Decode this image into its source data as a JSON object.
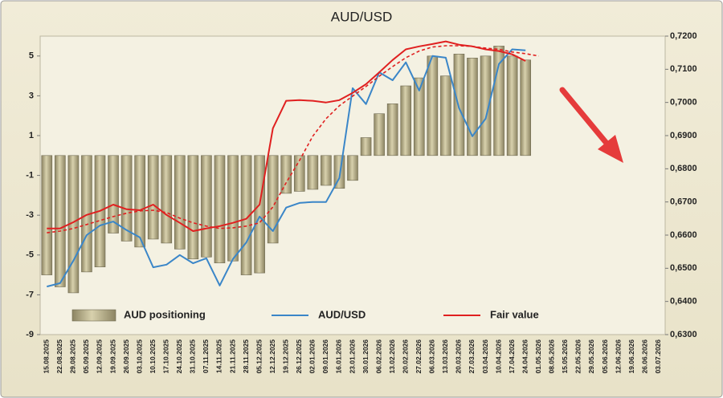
{
  "chart_data": {
    "type": "combo",
    "title": "AUD/USD",
    "categories": [
      "15.08.2025",
      "22.08.2025",
      "29.08.2025",
      "05.09.2025",
      "12.09.2025",
      "19.09.2025",
      "26.09.2025",
      "03.10.2025",
      "10.10.2025",
      "17.10.2025",
      "24.10.2025",
      "31.10.2025",
      "07.11.2025",
      "14.11.2025",
      "21.11.2025",
      "28.11.2025",
      "05.12.2025",
      "12.12.2025",
      "19.12.2025",
      "26.12.2025",
      "02.01.2026",
      "09.01.2026",
      "16.01.2026",
      "23.01.2026",
      "30.01.2026",
      "06.02.2026",
      "13.02.2026",
      "20.02.2026",
      "27.02.2026",
      "06.03.2026",
      "13.03.2026",
      "20.03.2026",
      "27.03.2026",
      "03.04.2026",
      "10.04.2026",
      "17.04.2026",
      "24.04.2026",
      "01.05.2026",
      "08.05.2026",
      "15.05.2026",
      "22.05.2026",
      "29.05.2026",
      "05.06.2026",
      "12.06.2026",
      "19.06.2026",
      "26.06.2026",
      "03.07.2026"
    ],
    "ylim": [
      -9,
      6
    ],
    "yticks": [
      -9,
      -7,
      -5,
      -3,
      -1,
      1,
      3,
      5
    ],
    "y2lim": [
      0.63,
      0.72
    ],
    "y2ticks": [
      {
        "value": 0.63,
        "label": "0,6300"
      },
      {
        "value": 0.64,
        "label": "0,6400"
      },
      {
        "value": 0.65,
        "label": "0,6500"
      },
      {
        "value": 0.66,
        "label": "0,6600"
      },
      {
        "value": 0.67,
        "label": "0,6700"
      },
      {
        "value": 0.68,
        "label": "0,6800"
      },
      {
        "value": 0.69,
        "label": "0,6900"
      },
      {
        "value": 0.7,
        "label": "0,7000"
      },
      {
        "value": 0.71,
        "label": "0,7100"
      },
      {
        "value": 0.72,
        "label": "0,7200"
      }
    ],
    "grid": false,
    "legend": "bottom",
    "series": [
      {
        "name": "AUD positioning",
        "type": "bar",
        "axis": "y",
        "color": "#b5ad86",
        "values": [
          -6.0,
          -6.6,
          -6.9,
          -5.85,
          -5.6,
          -3.9,
          -4.3,
          -4.6,
          -4.2,
          -4.4,
          -4.7,
          -5.2,
          -5.1,
          -5.4,
          -5.3,
          -6.0,
          -5.9,
          -4.4,
          -1.9,
          -1.8,
          -1.7,
          -1.5,
          -1.65,
          -1.25,
          0.9,
          2.1,
          2.6,
          3.5,
          3.9,
          5.0,
          4.0,
          5.1,
          4.9,
          5.0,
          5.5,
          5.0,
          4.8,
          null,
          null,
          null,
          null,
          null,
          null,
          null,
          null,
          null,
          null
        ]
      },
      {
        "name": "AUD/USD",
        "type": "line",
        "axis": "y2",
        "color": "#3a86c8",
        "values": [
          0.6445,
          0.6455,
          0.6523,
          0.66,
          0.6629,
          0.6641,
          0.6615,
          0.6593,
          0.6503,
          0.6511,
          0.654,
          0.6515,
          0.653,
          0.6448,
          0.6528,
          0.6578,
          0.6656,
          0.6612,
          0.6683,
          0.6697,
          0.67,
          0.67,
          0.6772,
          0.7043,
          0.6995,
          0.7091,
          0.7067,
          0.7121,
          0.7036,
          0.714,
          0.7135,
          0.6983,
          0.6898,
          0.6951,
          0.7116,
          0.716,
          0.7157,
          null,
          null,
          null,
          null,
          null,
          null,
          null,
          null,
          null,
          null
        ]
      },
      {
        "name": "Fair value",
        "type": "line",
        "axis": "y2",
        "color": "#e02020",
        "values": [
          0.662,
          0.662,
          0.6639,
          0.6661,
          0.6673,
          0.6692,
          0.6678,
          0.6675,
          0.6692,
          0.6661,
          0.6637,
          0.6612,
          0.662,
          0.6627,
          0.6637,
          0.6649,
          0.6692,
          0.6922,
          0.7005,
          0.7007,
          0.7005,
          0.7,
          0.7007,
          0.7029,
          0.7055,
          0.7091,
          0.7128,
          0.716,
          0.7169,
          0.7176,
          0.7184,
          0.7174,
          0.7169,
          0.716,
          0.7155,
          0.7145,
          0.7125,
          null,
          null,
          null,
          null,
          null,
          null,
          null,
          null,
          null,
          null
        ]
      },
      {
        "type": "line",
        "axis": "y2",
        "color": "#e02020",
        "dashed": true,
        "values": [
          0.6607,
          0.6612,
          0.662,
          0.6632,
          0.6644,
          0.6656,
          0.6666,
          0.6673,
          0.6675,
          0.6668,
          0.6651,
          0.6637,
          0.6627,
          0.662,
          0.6622,
          0.6627,
          0.6637,
          0.6685,
          0.6758,
          0.6825,
          0.6898,
          0.6951,
          0.699,
          0.7019,
          0.7048,
          0.7079,
          0.7108,
          0.7135,
          0.7155,
          0.7167,
          0.7171,
          0.7171,
          0.7169,
          0.7164,
          0.716,
          0.7152,
          0.7147,
          0.714,
          null,
          null,
          null,
          null,
          null,
          null,
          null,
          null,
          null
        ]
      }
    ]
  }
}
